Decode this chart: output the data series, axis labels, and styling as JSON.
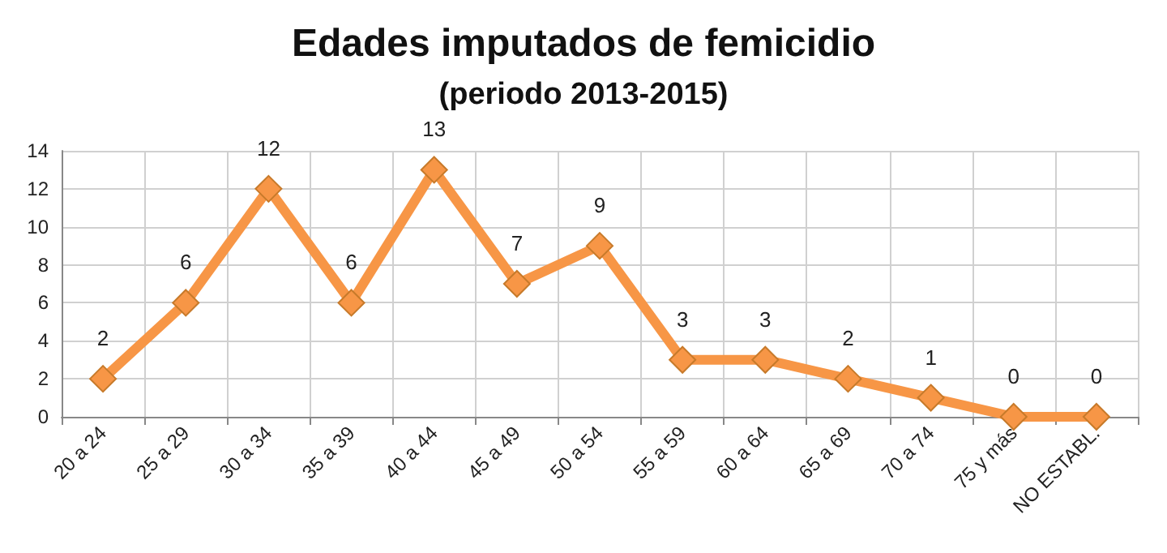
{
  "chart_data": {
    "type": "line",
    "title": "Edades imputados de femicidio",
    "subtitle": "(periodo 2013-2015)",
    "categories": [
      "20 a 24",
      "25 a 29",
      "30 a 34",
      "35 a 39",
      "40 a 44",
      "45 a 49",
      "50 a 54",
      "55 a 59",
      "60 a 64",
      "65 a 69",
      "70 a 74",
      "75 y más",
      "NO ESTABL."
    ],
    "series": [
      {
        "color": "#f79646",
        "values": [
          2,
          6,
          12,
          6,
          13,
          7,
          9,
          3,
          3,
          2,
          1,
          0,
          0
        ]
      }
    ],
    "ylim": [
      0,
      14
    ],
    "yticks": [
      0,
      2,
      4,
      6,
      8,
      10,
      12,
      14
    ],
    "grid": true,
    "marker": "diamond",
    "line_style": "solid",
    "data_labels": true
  }
}
